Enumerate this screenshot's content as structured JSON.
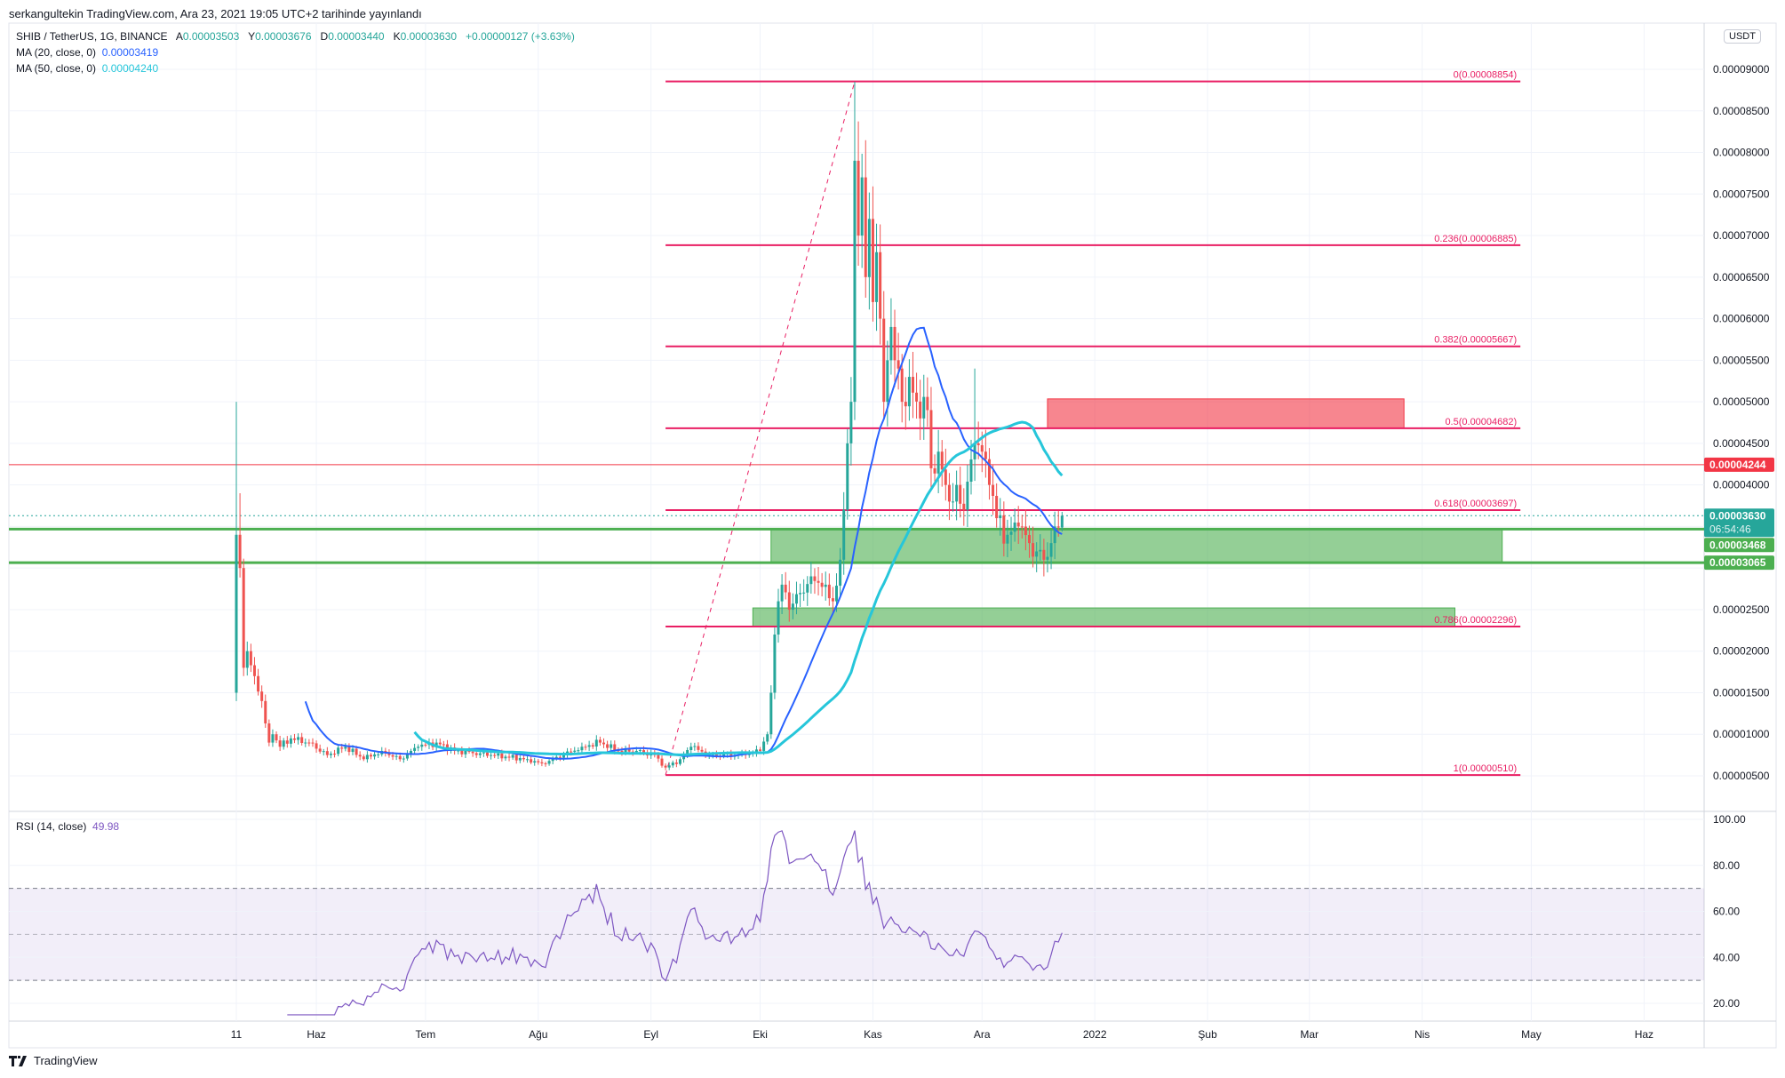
{
  "header": {
    "published": "serkangultekin TradingView.com, Ara 23, 2021 19:05 UTC+2 tarihinde yayınlandı"
  },
  "legend": {
    "symbol": "SHIB / TetherUS, 1G, BINANCE",
    "o_label": "A",
    "o": "0.00003503",
    "h_label": "Y",
    "h": "0.00003676",
    "l_label": "D",
    "l": "0.00003440",
    "c_label": "K",
    "c": "0.00003630",
    "change": "+0.00000127 (+3.63%)",
    "ma20_label": "MA (20, close, 0)",
    "ma20_value": "0.00003419",
    "ma50_label": "MA (50, close, 0)",
    "ma50_value": "0.00004240",
    "rsi_label": "RSI (14, close)",
    "rsi_value": "49.98"
  },
  "currency": "USDT",
  "footer": {
    "brand": "TradingView"
  },
  "colors": {
    "up": "#26a69a",
    "down": "#ef5350",
    "ma20": "#2962ff",
    "ma50": "#26c6da",
    "fib": "#e91e63",
    "rsi": "#7e57c2",
    "zone_green": "#4caf50",
    "zone_red": "#f23645"
  },
  "chart_data": {
    "type": "candlestick",
    "start_date": "2021-05-10",
    "ylim": [
      1e-06,
      9.35e-05
    ],
    "yticks": [
      "0.00000500",
      "0.00001000",
      "0.00001500",
      "0.00002000",
      "0.00002500",
      "0.00003000",
      "0.00003500",
      "0.00004000",
      "0.00004500",
      "0.00005000",
      "0.00005500",
      "0.00006000",
      "0.00006500",
      "0.00007000",
      "0.00007500",
      "0.00008000",
      "0.00008500",
      "0.00009000"
    ],
    "xticks": [
      {
        "label": "11",
        "date": "2021-05-10"
      },
      {
        "label": "Haz",
        "date": "2021-06-01"
      },
      {
        "label": "Tem",
        "date": "2021-07-01"
      },
      {
        "label": "Ağu",
        "date": "2021-08-01"
      },
      {
        "label": "Eyl",
        "date": "2021-09-01"
      },
      {
        "label": "Eki",
        "date": "2021-10-01"
      },
      {
        "label": "Kas",
        "date": "2021-11-01"
      },
      {
        "label": "Ara",
        "date": "2021-12-01"
      },
      {
        "label": "2022",
        "date": "2022-01-01"
      },
      {
        "label": "Şub",
        "date": "2022-02-01"
      },
      {
        "label": "Mar",
        "date": "2022-03-01"
      },
      {
        "label": "Nis",
        "date": "2022-04-01"
      },
      {
        "label": "May",
        "date": "2022-05-01"
      },
      {
        "label": "Haz",
        "date": "2022-06-01"
      }
    ],
    "close_waypoints": [
      {
        "date": "2021-05-10",
        "close": 3.4e-05,
        "high": 5e-05,
        "low": 1.4e-05
      },
      {
        "date": "2021-05-11",
        "close": 3e-05,
        "high": 3.9e-05
      },
      {
        "date": "2021-05-12",
        "close": 1.8e-05
      },
      {
        "date": "2021-05-13",
        "close": 2e-05
      },
      {
        "date": "2021-05-15",
        "close": 1.7e-05
      },
      {
        "date": "2021-05-17",
        "close": 1.4e-05
      },
      {
        "date": "2021-05-19",
        "close": 9e-06
      },
      {
        "date": "2021-05-20",
        "close": 1e-05
      },
      {
        "date": "2021-05-22",
        "close": 8.5e-06
      },
      {
        "date": "2021-05-25",
        "close": 9.5e-06
      },
      {
        "date": "2021-05-30",
        "close": 9e-06
      },
      {
        "date": "2021-06-04",
        "close": 7.5e-06
      },
      {
        "date": "2021-06-09",
        "close": 8.5e-06
      },
      {
        "date": "2021-06-14",
        "close": 7e-06
      },
      {
        "date": "2021-06-19",
        "close": 8e-06
      },
      {
        "date": "2021-06-24",
        "close": 7e-06
      },
      {
        "date": "2021-06-29",
        "close": 8.5e-06
      },
      {
        "date": "2021-07-04",
        "close": 9e-06
      },
      {
        "date": "2021-07-09",
        "close": 8e-06
      },
      {
        "date": "2021-07-19",
        "close": 7.5e-06
      },
      {
        "date": "2021-07-29",
        "close": 7e-06
      },
      {
        "date": "2021-08-02",
        "close": 6.5e-06
      },
      {
        "date": "2021-08-08",
        "close": 7.5e-06
      },
      {
        "date": "2021-08-13",
        "close": 8.5e-06
      },
      {
        "date": "2021-08-18",
        "close": 9e-06
      },
      {
        "date": "2021-08-23",
        "close": 8e-06
      },
      {
        "date": "2021-08-28",
        "close": 8e-06
      },
      {
        "date": "2021-09-02",
        "close": 7.5e-06
      },
      {
        "date": "2021-09-05",
        "close": 6e-06
      },
      {
        "date": "2021-09-09",
        "close": 7e-06
      },
      {
        "date": "2021-09-12",
        "close": 8.5e-06
      },
      {
        "date": "2021-09-17",
        "close": 7.5e-06
      },
      {
        "date": "2021-09-27",
        "close": 7.5e-06
      },
      {
        "date": "2021-10-01",
        "close": 8e-06
      },
      {
        "date": "2021-10-03",
        "close": 1e-05
      },
      {
        "date": "2021-10-04",
        "close": 1.5e-05
      },
      {
        "date": "2021-10-05",
        "close": 2.2e-05
      },
      {
        "date": "2021-10-06",
        "close": 2.6e-05
      },
      {
        "date": "2021-10-07",
        "close": 2.8e-05
      },
      {
        "date": "2021-10-09",
        "close": 2.5e-05
      },
      {
        "date": "2021-10-12",
        "close": 2.7e-05
      },
      {
        "date": "2021-10-15",
        "close": 2.9e-05
      },
      {
        "date": "2021-10-19",
        "close": 2.8e-05
      },
      {
        "date": "2021-10-21",
        "close": 2.6e-05
      },
      {
        "date": "2021-10-23",
        "close": 3.1e-05
      },
      {
        "date": "2021-10-24",
        "close": 3.7e-05
      },
      {
        "date": "2021-10-25",
        "close": 4.5e-05
      },
      {
        "date": "2021-10-26",
        "close": 5e-05
      },
      {
        "date": "2021-10-27",
        "close": 7.9e-05,
        "high": 8.85e-05
      },
      {
        "date": "2021-10-28",
        "close": 7e-05
      },
      {
        "date": "2021-10-29",
        "close": 7.7e-05
      },
      {
        "date": "2021-10-30",
        "close": 6.5e-05
      },
      {
        "date": "2021-10-31",
        "close": 7.2e-05
      },
      {
        "date": "2021-11-01",
        "close": 6.2e-05
      },
      {
        "date": "2021-11-02",
        "close": 6.8e-05
      },
      {
        "date": "2021-11-03",
        "close": 6e-05
      },
      {
        "date": "2021-11-04",
        "close": 5e-05
      },
      {
        "date": "2021-11-05",
        "close": 5.5e-05
      },
      {
        "date": "2021-11-06",
        "close": 5.9e-05
      },
      {
        "date": "2021-11-07",
        "close": 5.5e-05
      },
      {
        "date": "2021-11-08",
        "close": 5.4e-05
      },
      {
        "date": "2021-11-09",
        "close": 5e-05
      },
      {
        "date": "2021-11-11",
        "close": 5.3e-05
      },
      {
        "date": "2021-11-14",
        "close": 4.8e-05
      },
      {
        "date": "2021-11-16",
        "close": 4.9e-05
      },
      {
        "date": "2021-11-17",
        "close": 4.2e-05
      },
      {
        "date": "2021-11-19",
        "close": 4.4e-05
      },
      {
        "date": "2021-11-21",
        "close": 4e-05
      },
      {
        "date": "2021-11-23",
        "close": 3.8e-05
      },
      {
        "date": "2021-11-24",
        "close": 4e-05
      },
      {
        "date": "2021-11-26",
        "close": 3.7e-05
      },
      {
        "date": "2021-11-29",
        "close": 4.5e-05,
        "high": 5.4e-05
      },
      {
        "date": "2021-12-01",
        "close": 4.4e-05
      },
      {
        "date": "2021-12-03",
        "close": 4e-05
      },
      {
        "date": "2021-12-05",
        "close": 3.6e-05
      },
      {
        "date": "2021-12-08",
        "close": 3.4e-05
      },
      {
        "date": "2021-12-11",
        "close": 3.5e-05
      },
      {
        "date": "2021-12-14",
        "close": 3.3e-05
      },
      {
        "date": "2021-12-16",
        "close": 3.2e-05
      },
      {
        "date": "2021-12-18",
        "close": 3.1e-05,
        "low": 2.9e-05
      },
      {
        "date": "2021-12-20",
        "close": 3.3e-05
      },
      {
        "date": "2021-12-21",
        "close": 3.5e-05
      },
      {
        "date": "2021-12-23",
        "close": 3.63e-05,
        "high": 3.676e-05,
        "low": 3.44e-05
      }
    ],
    "fib_levels": [
      {
        "ratio": "0",
        "price": 8.854e-05,
        "label": "0(0.00008854)"
      },
      {
        "ratio": "0.236",
        "price": 6.885e-05,
        "label": "0.236(0.00006885)"
      },
      {
        "ratio": "0.382",
        "price": 5.667e-05,
        "label": "0.382(0.00005667)"
      },
      {
        "ratio": "0.5",
        "price": 4.682e-05,
        "label": "0.5(0.00004682)"
      },
      {
        "ratio": "0.618",
        "price": 3.697e-05,
        "label": "0.618(0.00003697)"
      },
      {
        "ratio": "0.786",
        "price": 2.296e-05,
        "label": "0.786(0.00002296)"
      },
      {
        "ratio": "1",
        "price": 5.1e-06,
        "label": "1(0.00000510)"
      }
    ],
    "fib_range": {
      "from_date": "2021-09-05",
      "to_date": "2022-04-28",
      "low": 5.1e-06,
      "high": 8.854e-05,
      "trend_top_date": "2021-10-27"
    },
    "horizontal_lines": [
      {
        "price": 4.244e-05,
        "label": "0.00004244",
        "color": "#f23645",
        "width": 1
      },
      {
        "price": 3.468e-05,
        "label": "0.00003468",
        "color": "#4caf50",
        "width": 3
      },
      {
        "price": 3.065e-05,
        "label": "0.00003065",
        "color": "#4caf50",
        "width": 3
      }
    ],
    "last_price": {
      "price": 3.63e-05,
      "label": "0.00003630",
      "countdown": "06:54:46"
    },
    "zones": [
      {
        "from": "2021-10-04",
        "to": "2022-04-23",
        "low": 3.065e-05,
        "high": 3.468e-05,
        "color": "#4caf50"
      },
      {
        "from": "2021-09-29",
        "to": "2022-04-10",
        "low": 2.296e-05,
        "high": 2.52e-05,
        "color": "#4caf50"
      },
      {
        "from": "2021-12-19",
        "to": "2022-03-27",
        "low": 4.68e-05,
        "high": 5.035e-05,
        "color": "#f23645"
      }
    ],
    "ma_periods": [
      20,
      50
    ],
    "rsi": {
      "period": 14,
      "upper": 70,
      "middle": 50,
      "lower": 30,
      "ylim": [
        15,
        100
      ],
      "yticks": [
        "100.00",
        "80.00",
        "60.00",
        "40.00",
        "20.00"
      ]
    }
  }
}
